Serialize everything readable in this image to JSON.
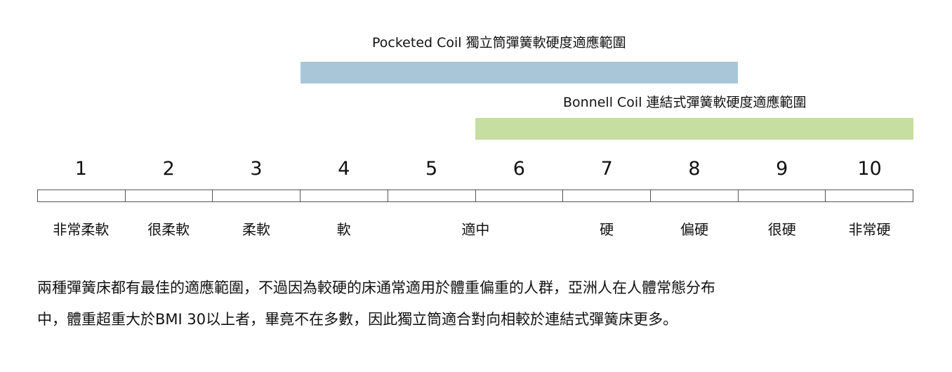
{
  "ranges": {
    "pocketed": {
      "label": "Pocketed Coil 獨立筒彈簧軟硬度適應範圍",
      "start": 3.5,
      "end": 8.5,
      "color": "#a9c6d9"
    },
    "bonnell": {
      "label": "Bonnell Coil 連結式彈簧軟硬度適應範圍",
      "start": 5.5,
      "end": 10,
      "color": "#c6dea1"
    }
  },
  "scale": {
    "numbers": [
      "1",
      "2",
      "3",
      "4",
      "5",
      "6",
      "7",
      "8",
      "9",
      "10"
    ],
    "words": [
      "非常柔軟",
      "很柔軟",
      "柔軟",
      "軟",
      "",
      "適中",
      "硬",
      "偏硬",
      "很硬",
      "非常硬"
    ]
  },
  "description": {
    "line1": "兩種彈簧床都有最佳的適應範圍，不過因為較硬的床通常適用於體重偏重的人群，亞洲人在人體常態分布",
    "line2": "中，體重超重大於BMI 30以上者，畢竟不在多數，因此獨立筒適合對向相較於連結式彈簧床更多。"
  }
}
